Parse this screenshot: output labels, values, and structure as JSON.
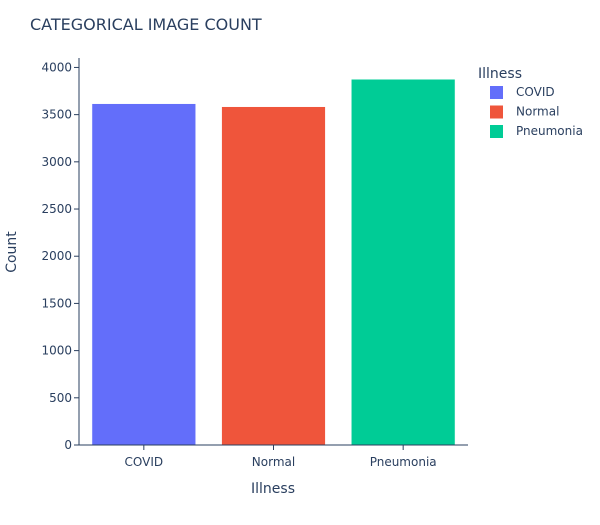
{
  "chart_data": {
    "type": "bar",
    "title": "CATEGORICAL IMAGE COUNT",
    "xlabel": "Illness",
    "ylabel": "Count",
    "categories": [
      "COVID",
      "Normal",
      "Pneumonia"
    ],
    "values": [
      3616,
      3584,
      3875
    ],
    "colors": [
      "#636efa",
      "#ef553b",
      "#00cc96"
    ],
    "ylim": [
      0,
      4100
    ],
    "yticks": [
      0,
      500,
      1000,
      1500,
      2000,
      2500,
      3000,
      3500,
      4000
    ],
    "legend_title": "Illness",
    "legend_position": "right",
    "grid": false
  }
}
